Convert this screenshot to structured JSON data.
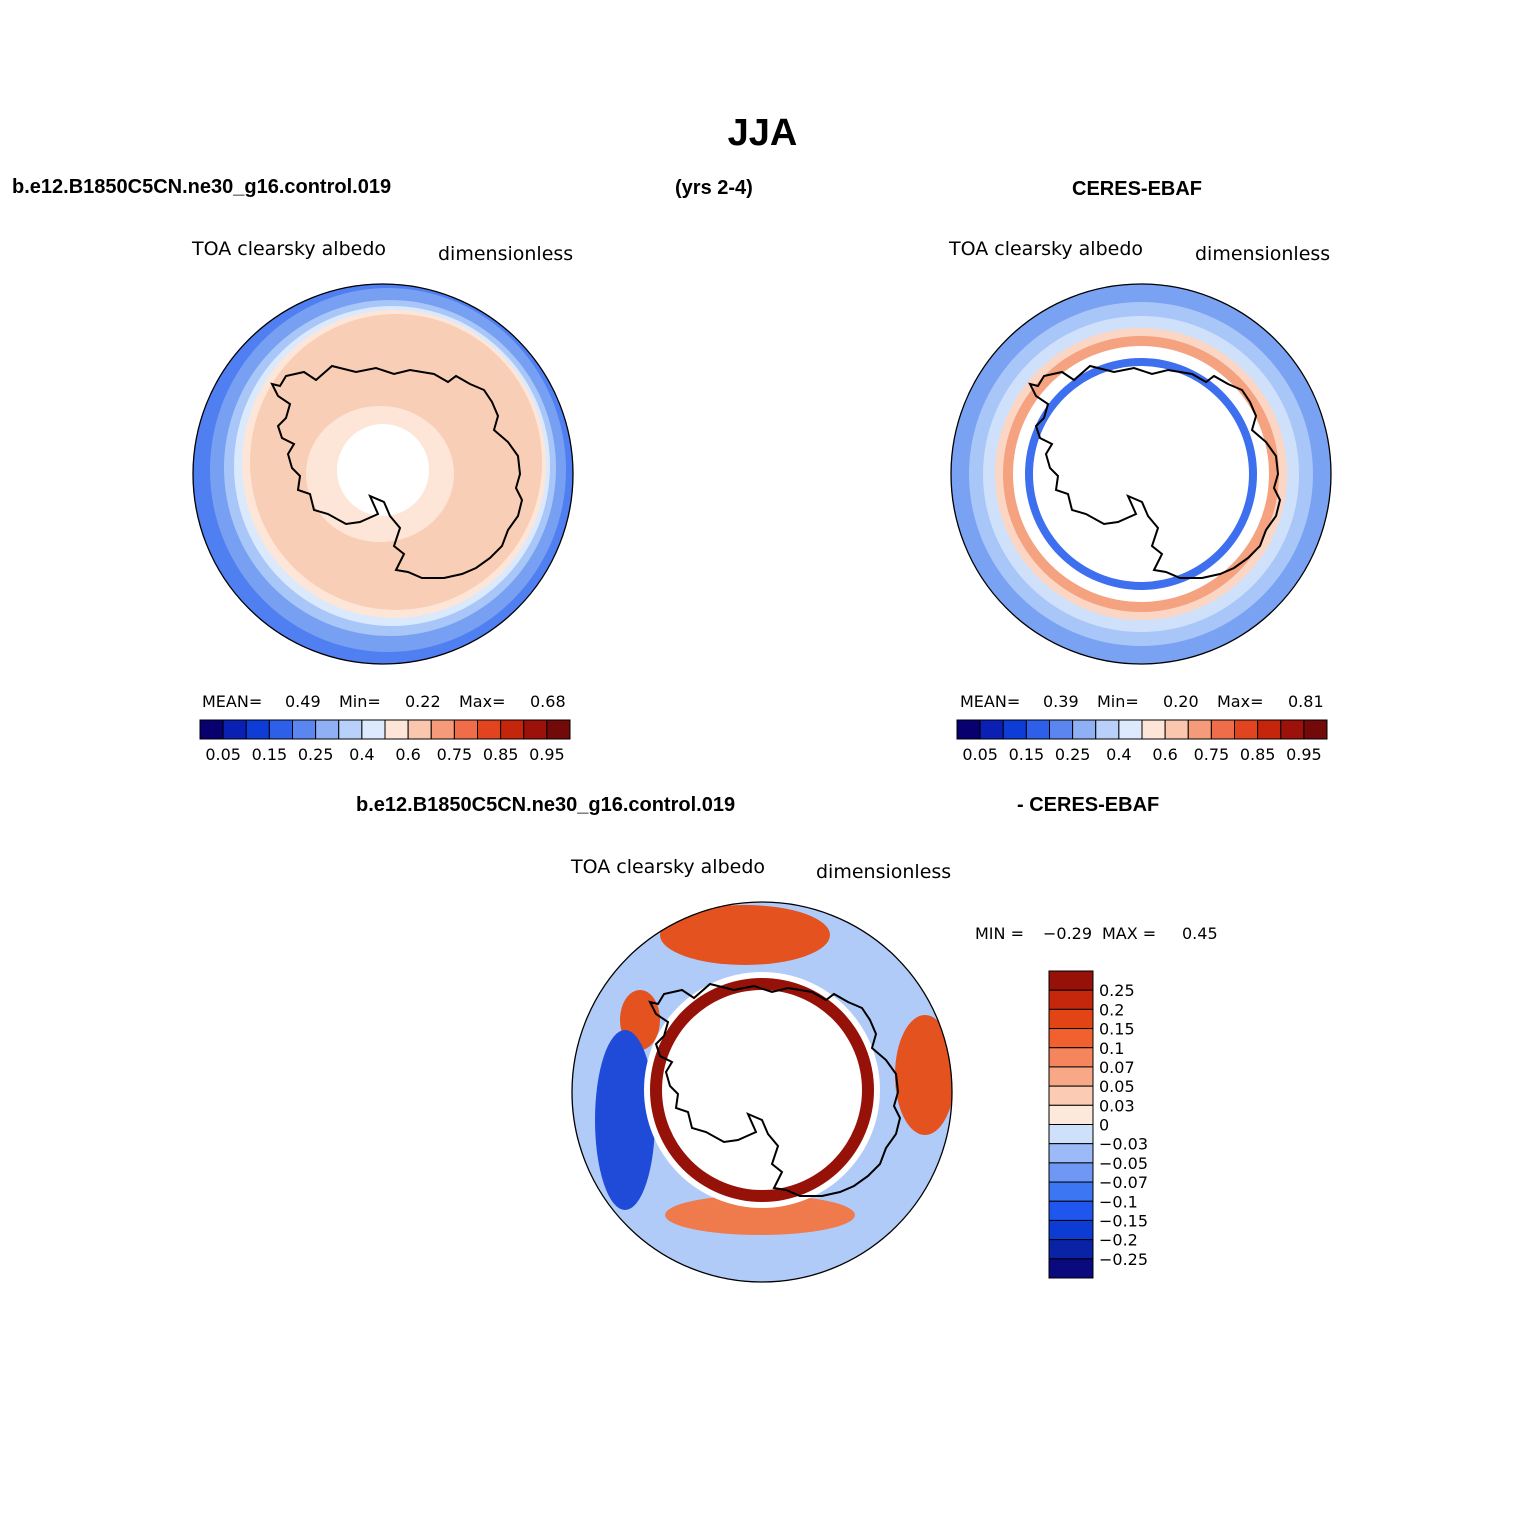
{
  "header": {
    "title": "JJA",
    "case_name": "b.e12.B1850C5CN.ne30_g16.control.019",
    "years": "(yrs 2-4)",
    "obs_name": "CERES-EBAF"
  },
  "diff_header": {
    "case_name": "b.e12.B1850C5CN.ne30_g16.control.019",
    "obs_name": "- CERES-EBAF"
  },
  "panels": {
    "model": {
      "variable": "TOA clearsky albedo",
      "units": "dimensionless",
      "mean_label": "MEAN=",
      "mean": "0.49",
      "min_label": "Min=",
      "min": "0.22",
      "max_label": "Max=",
      "max": "0.68"
    },
    "obs": {
      "variable": "TOA clearsky albedo",
      "units": "dimensionless",
      "mean_label": "MEAN=",
      "mean": "0.39",
      "min_label": "Min=",
      "min": "0.20",
      "max_label": "Max=",
      "max": "0.81"
    },
    "diff": {
      "variable": "TOA clearsky albedo",
      "units": "dimensionless",
      "min_label": "MIN =",
      "min": "−0.29",
      "max_label": "MAX =",
      "max": "0.45"
    }
  },
  "colorbar_abs": {
    "colors": [
      "#08006e",
      "#0a1fb4",
      "#0d3cd6",
      "#2e5fe9",
      "#5b86f0",
      "#8fb0f5",
      "#b9d0fa",
      "#ddeafd",
      "#fde6d7",
      "#fbc6ae",
      "#f69b7a",
      "#ef6d48",
      "#e1441f",
      "#c4250b",
      "#9c120a",
      "#720a0a"
    ],
    "tick_labels": [
      "0.05",
      "0.15",
      "0.25",
      "0.4",
      "0.6",
      "0.75",
      "0.85",
      "0.95"
    ]
  },
  "colorbar_diff": {
    "colors": [
      "#0a0a7e",
      "#0a22a6",
      "#0d3cd4",
      "#1f56ee",
      "#3c76f2",
      "#6f98f5",
      "#9dbaf8",
      "#cfe0fb",
      "#fde9dc",
      "#fbcbb3",
      "#f8a886",
      "#f5855c",
      "#f1612f",
      "#e34416",
      "#c4270b",
      "#961108"
    ],
    "tick_labels": [
      "0.25",
      "0.2",
      "0.15",
      "0.1",
      "0.07",
      "0.05",
      "0.03",
      "0",
      "−0.03",
      "−0.05",
      "−0.07",
      "−0.1",
      "−0.15",
      "−0.2",
      "−0.25"
    ]
  }
}
